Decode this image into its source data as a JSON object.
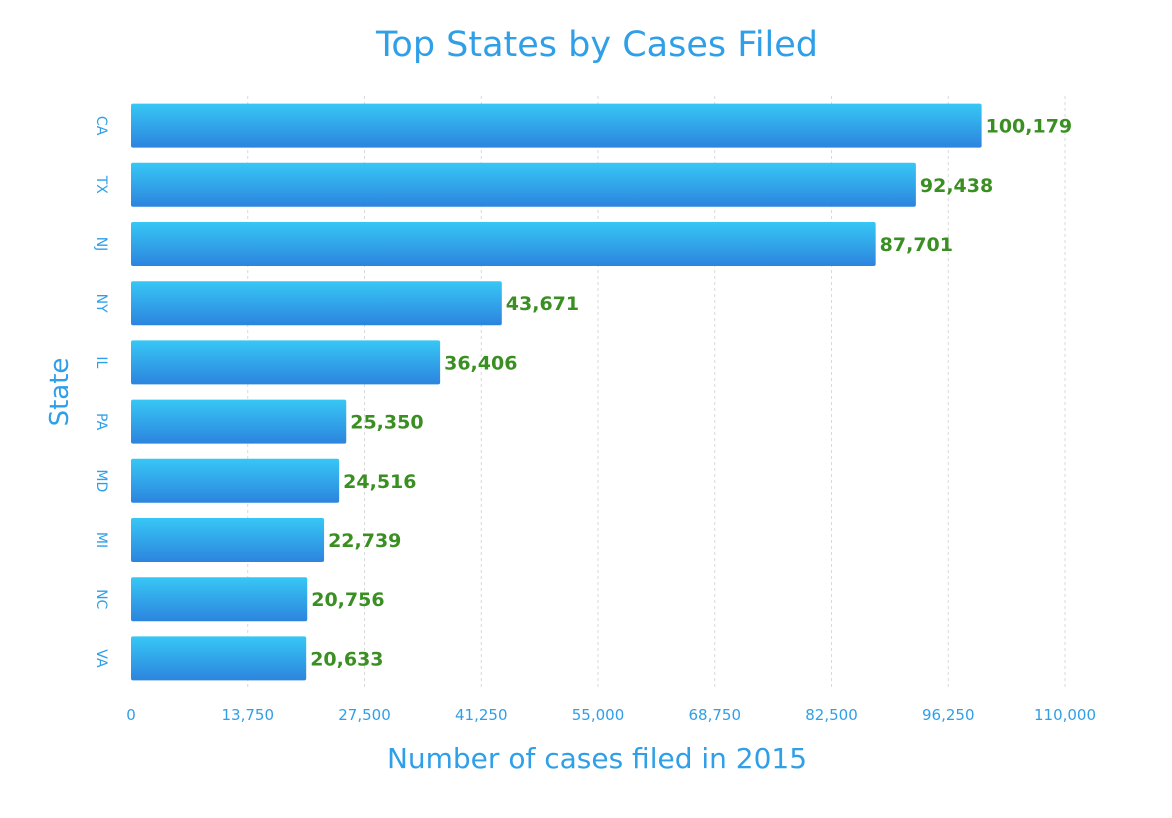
{
  "chart_data": {
    "type": "bar",
    "orientation": "horizontal",
    "title": "Top States by Cases Filed",
    "xlabel": "Number of cases filed in 2015",
    "ylabel": "State",
    "categories": [
      "CA",
      "TX",
      "NJ",
      "NY",
      "IL",
      "PA",
      "MD",
      "MI",
      "NC",
      "VA"
    ],
    "values": [
      100179,
      92438,
      87701,
      43671,
      36406,
      25350,
      24516,
      22739,
      20756,
      20633
    ],
    "value_labels": [
      "100,179",
      "92,438",
      "87,701",
      "43,671",
      "36,406",
      "25,350",
      "24,516",
      "22,739",
      "20,756",
      "20,633"
    ],
    "xlim": [
      0,
      110000
    ],
    "x_ticks": [
      0,
      13750,
      27500,
      41250,
      55000,
      68750,
      82500,
      96250,
      110000
    ],
    "x_tick_labels": [
      "0",
      "13,750",
      "27,500",
      "41,250",
      "55,000",
      "68,750",
      "82,500",
      "96,250",
      "110,000"
    ],
    "grid": true,
    "grid_style": "dashed-vertical",
    "legend": "none",
    "colors": {
      "title": "#2f9fe8",
      "axis_text": "#2f9fe8",
      "value_label": "#3a8f22",
      "bar_top": "#37c7f5",
      "bar_bottom": "#2c84de",
      "grid": "#d9d9d9"
    }
  }
}
